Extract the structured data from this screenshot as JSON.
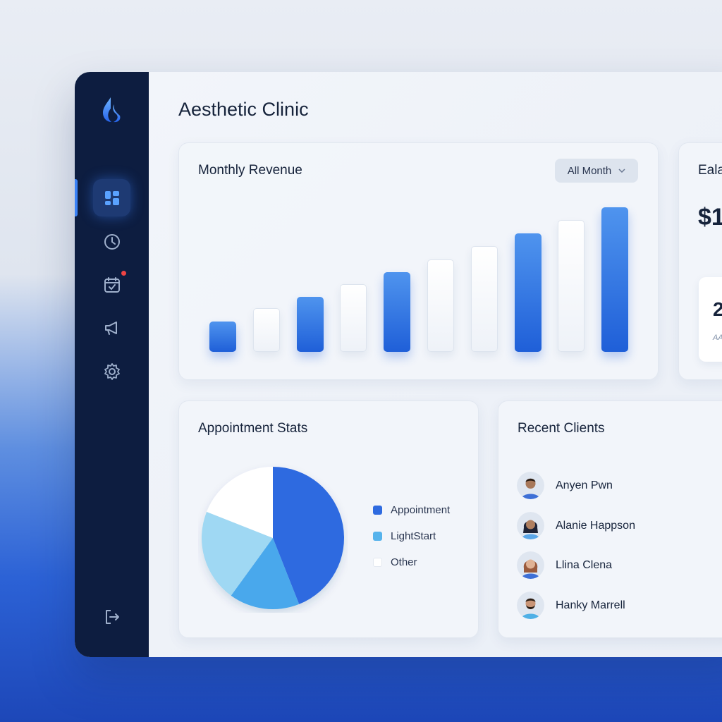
{
  "app": {
    "title": "Aesthetic Clinic"
  },
  "sidebar": {
    "items": [
      {
        "name": "dashboard",
        "icon": "dashboard-icon",
        "active": true
      },
      {
        "name": "history",
        "icon": "clock-icon"
      },
      {
        "name": "calendar",
        "icon": "calendar-icon",
        "badge": true
      },
      {
        "name": "campaigns",
        "icon": "megaphone-icon"
      },
      {
        "name": "settings",
        "icon": "gear-icon"
      }
    ],
    "logout_icon": "logout-icon"
  },
  "revenue": {
    "title": "Monthly Revenue",
    "filter": "All Month",
    "bar_fill": [
      0.21,
      0.3,
      0.38,
      0.47,
      0.55,
      0.64,
      0.73,
      0.82,
      0.91,
      1.0
    ],
    "bar_style": [
      "blue",
      "white",
      "blue",
      "white",
      "blue",
      "white",
      "white",
      "blue",
      "white",
      "blue"
    ]
  },
  "side_card": {
    "title": "Eala",
    "value": "$1",
    "mini_value": "2",
    "mini_sub": "AA"
  },
  "appointments": {
    "title": "Appointment Stats",
    "legend": [
      {
        "label": "Appointment",
        "color": "#2f6be0"
      },
      {
        "label": "LightStart",
        "color": "#56b3ec"
      },
      {
        "label": "Other",
        "color": "#ffffff"
      }
    ],
    "slices": [
      {
        "label": "Appointment",
        "fraction": 0.44,
        "color": "#2f6be0"
      },
      {
        "label": "LightStart",
        "fraction": 0.16,
        "color": "#4aa8ec"
      },
      {
        "label": "LightStart",
        "fraction": 0.21,
        "color": "#9fd8f3"
      },
      {
        "label": "Other",
        "fraction": 0.19,
        "color": "#ffffff"
      }
    ]
  },
  "clients": {
    "title": "Recent Clients",
    "items": [
      {
        "name": "Anyen Pwn"
      },
      {
        "name": "Alanie Happson"
      },
      {
        "name": "Llina Clena"
      },
      {
        "name": "Hanky Marrell"
      }
    ]
  },
  "colors": {
    "accent": "#2f6be0",
    "sidebar": "#0d1d40",
    "badge": "#ef4444"
  }
}
